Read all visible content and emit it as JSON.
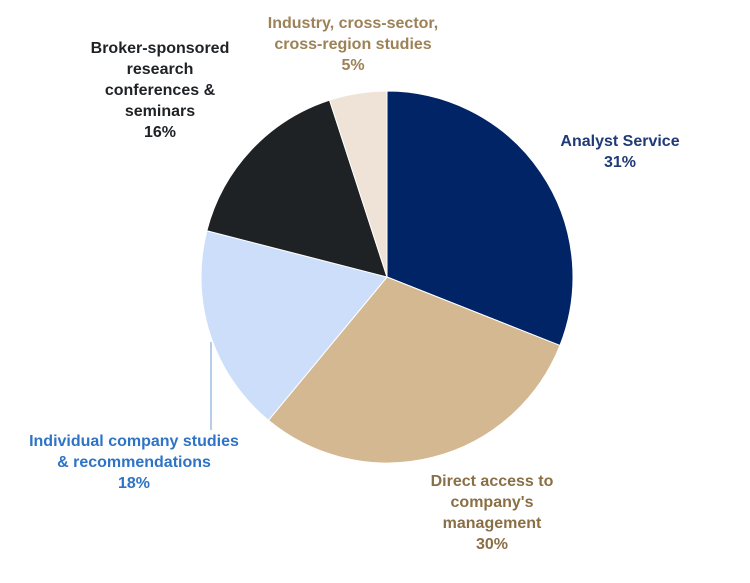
{
  "chart_data": {
    "type": "pie",
    "title": "",
    "slices": [
      {
        "label_lines": [
          "Analyst Service"
        ],
        "percent_label": "31%",
        "value": 31,
        "color": "#002466",
        "label_color": "#1f3a75"
      },
      {
        "label_lines": [
          "Direct access to",
          "company's",
          "management"
        ],
        "percent_label": "30%",
        "value": 30,
        "color": "#d4b892",
        "label_color": "#8a6f45"
      },
      {
        "label_lines": [
          "Individual company studies",
          "& recommendations"
        ],
        "percent_label": "18%",
        "value": 18,
        "color": "#cddefa",
        "label_color": "#2e73c6"
      },
      {
        "label_lines": [
          "Broker-sponsored",
          "research",
          "conferences &",
          "seminars"
        ],
        "percent_label": "16%",
        "value": 16,
        "color": "#1f2225",
        "label_color": "#1f2225"
      },
      {
        "label_lines": [
          "Industry, cross-sector,",
          "cross-region studies"
        ],
        "percent_label": "5%",
        "value": 5,
        "color": "#eee3d6",
        "label_color": "#9c8257"
      }
    ],
    "start_angle": "12 o'clock",
    "direction": "clockwise",
    "legend": "none"
  }
}
